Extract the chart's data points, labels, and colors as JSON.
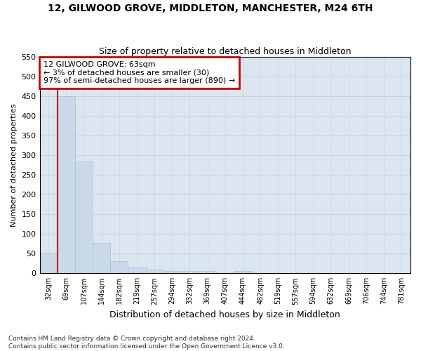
{
  "title": "12, GILWOOD GROVE, MIDDLETON, MANCHESTER, M24 6TH",
  "subtitle": "Size of property relative to detached houses in Middleton",
  "xlabel": "Distribution of detached houses by size in Middleton",
  "ylabel": "Number of detached properties",
  "bar_color": "#c9d9ea",
  "bar_edge_color": "#a8bfd4",
  "grid_color": "#c8d4e0",
  "background_color": "#dce6f0",
  "annotation_box_color": "#cc0000",
  "property_line_color": "#cc0000",
  "fig_background": "#ffffff",
  "categories": [
    "32sqm",
    "69sqm",
    "107sqm",
    "144sqm",
    "182sqm",
    "219sqm",
    "257sqm",
    "294sqm",
    "332sqm",
    "369sqm",
    "407sqm",
    "444sqm",
    "482sqm",
    "519sqm",
    "557sqm",
    "594sqm",
    "632sqm",
    "669sqm",
    "706sqm",
    "744sqm",
    "781sqm"
  ],
  "values": [
    52,
    450,
    283,
    77,
    31,
    14,
    10,
    6,
    5,
    5,
    0,
    5,
    0,
    0,
    0,
    0,
    0,
    0,
    0,
    0,
    0
  ],
  "ylim": [
    0,
    550
  ],
  "yticks": [
    0,
    50,
    100,
    150,
    200,
    250,
    300,
    350,
    400,
    450,
    500,
    550
  ],
  "annotation_title": "12 GILWOOD GROVE: 63sqm",
  "annotation_line1": "← 3% of detached houses are smaller (30)",
  "annotation_line2": "97% of semi-detached houses are larger (890) →",
  "footnote1": "Contains HM Land Registry data © Crown copyright and database right 2024.",
  "footnote2": "Contains public sector information licensed under the Open Government Licence v3.0.",
  "property_line_x": 0.5
}
